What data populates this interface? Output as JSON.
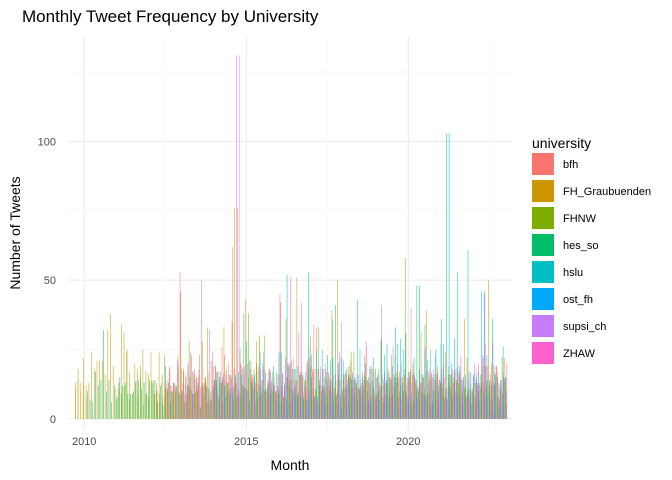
{
  "chart_data": {
    "type": "bar",
    "title": "Monthly Tweet Frequency by University",
    "xlabel": "Month",
    "ylabel": "Number of Tweets",
    "xlim": [
      2009.5,
      2023.2
    ],
    "ylim": [
      -4,
      138
    ],
    "x_ticks": [
      2010,
      2015,
      2020
    ],
    "y_ticks": [
      0,
      50,
      100
    ],
    "grid": true,
    "legend_title": "university",
    "legend_position": "right",
    "series": [
      {
        "name": "bfh",
        "color": "#F8766D",
        "start": 2012.2,
        "end": 2023.0,
        "base": 14,
        "amp": 18,
        "peak_x": 2014.6,
        "peak_v": 62,
        "seed": 11
      },
      {
        "name": "FH_Graubuenden",
        "color": "#CD9600",
        "start": 2009.75,
        "end": 2023.0,
        "base": 18,
        "amp": 22,
        "peak_x": 2014.7,
        "peak_v": 76,
        "seed": 23,
        "early": [
          [
            2009.75,
            11
          ],
          [
            2009.83,
            14
          ],
          [
            2009.92,
            13
          ],
          [
            2010.0,
            12
          ],
          [
            2010.08,
            12
          ]
        ]
      },
      {
        "name": "FHNW",
        "color": "#7CAE00",
        "start": 2011.0,
        "end": 2023.0,
        "base": 13,
        "amp": 18,
        "peak_x": 2019.9,
        "peak_v": 58,
        "seed": 37
      },
      {
        "name": "hes_so",
        "color": "#00BE67",
        "start": 2010.1,
        "end": 2023.0,
        "base": 12,
        "amp": 16,
        "peak_x": 2020.3,
        "peak_v": 48,
        "seed": 41
      },
      {
        "name": "hslu",
        "color": "#00BFC4",
        "start": 2014.0,
        "end": 2023.0,
        "base": 18,
        "amp": 30,
        "peak_x": 2021.2,
        "peak_v": 103,
        "seed": 53
      },
      {
        "name": "ost_fh",
        "color": "#00A9FF",
        "start": 2016.0,
        "end": 2023.0,
        "base": 6,
        "amp": 10,
        "peak_x": 2020.8,
        "peak_v": 25,
        "seed": 61
      },
      {
        "name": "supsi_ch",
        "color": "#C77CFF",
        "start": 2013.0,
        "end": 2023.0,
        "base": 14,
        "amp": 22,
        "peak_x": 2014.7,
        "peak_v": 131,
        "seed": 71
      },
      {
        "name": "ZHAW",
        "color": "#FF61CC",
        "start": 2012.5,
        "end": 2023.0,
        "base": 16,
        "amp": 24,
        "peak_x": 2012.9,
        "peak_v": 53,
        "seed": 83
      }
    ]
  }
}
